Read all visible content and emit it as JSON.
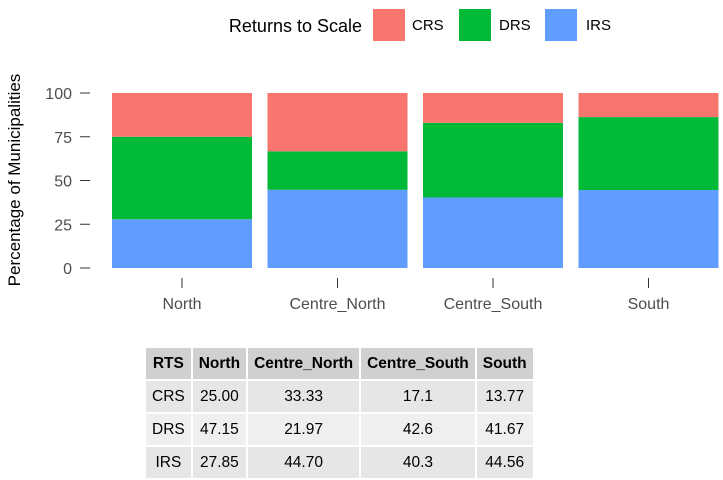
{
  "chart_data": {
    "type": "bar",
    "stacked": true,
    "categories": [
      "North",
      "Centre_North",
      "Centre_South",
      "South"
    ],
    "series": [
      {
        "name": "IRS",
        "color": "#619CFF",
        "values": [
          27.85,
          44.7,
          40.3,
          44.56
        ]
      },
      {
        "name": "DRS",
        "color": "#00BA38",
        "values": [
          47.15,
          21.97,
          42.6,
          41.67
        ]
      },
      {
        "name": "CRS",
        "color": "#F8766D",
        "values": [
          25.0,
          33.33,
          17.1,
          13.77
        ]
      }
    ],
    "legend": {
      "title": "Returns to Scale",
      "position": "top",
      "entries": [
        {
          "label": "CRS",
          "color": "#F8766D"
        },
        {
          "label": "DRS",
          "color": "#00BA38"
        },
        {
          "label": "IRS",
          "color": "#619CFF"
        }
      ]
    },
    "ylabel": "Percentage of Municipalities",
    "xlabel": "",
    "ylim": [
      0,
      100
    ],
    "yticks": [
      0,
      25,
      50,
      75,
      100
    ],
    "grid": false
  },
  "table": {
    "headers": [
      "RTS",
      "North",
      "Centre_North",
      "Centre_South",
      "South"
    ],
    "rows": [
      [
        "CRS",
        "25.00",
        "33.33",
        "17.1",
        "13.77"
      ],
      [
        "DRS",
        "47.15",
        "21.97",
        "42.6",
        "41.67"
      ],
      [
        "IRS",
        "27.85",
        "44.70",
        "40.3",
        "44.56"
      ]
    ]
  }
}
